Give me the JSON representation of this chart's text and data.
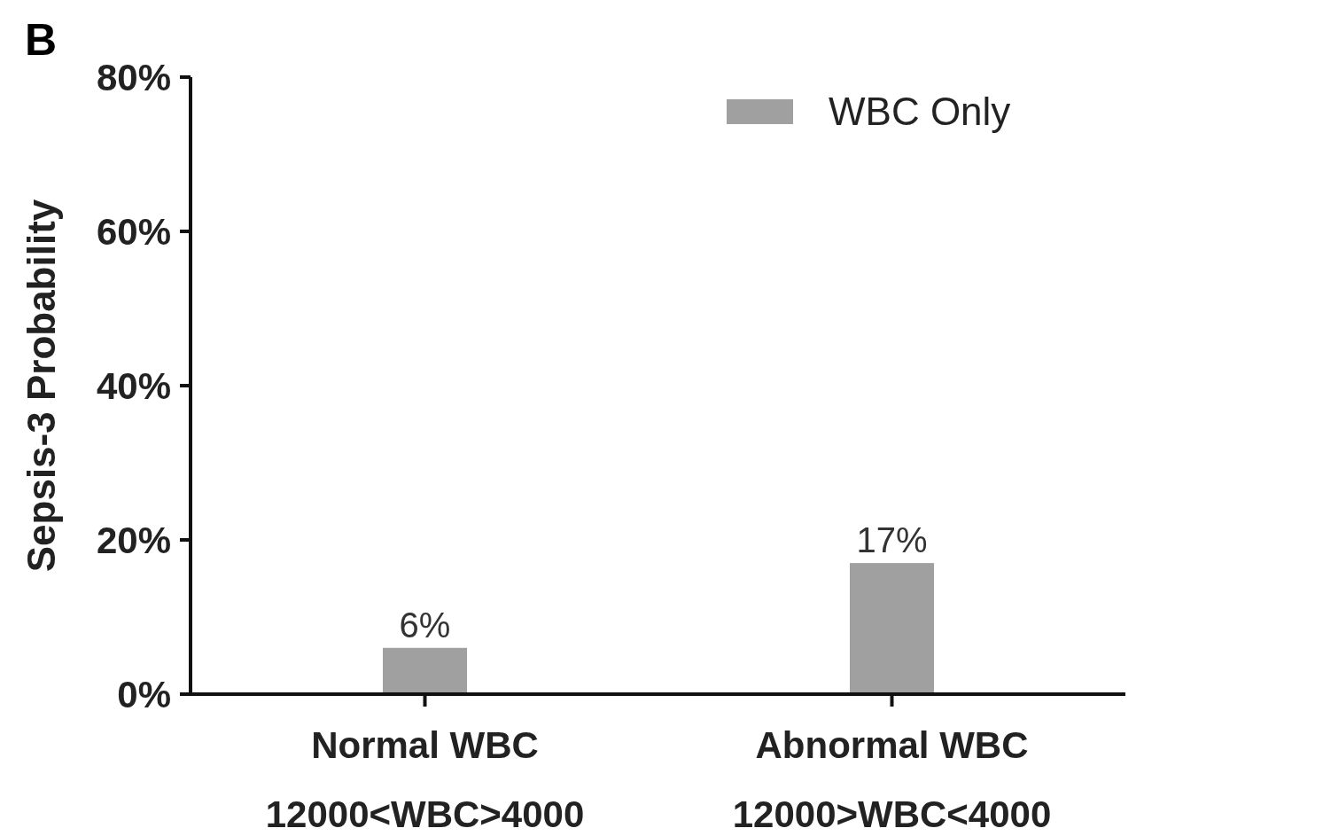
{
  "chart_data": {
    "type": "bar",
    "ylabel": "Sepsis-3 Probability",
    "annotations": [
      "B"
    ],
    "categories": [
      "Normal WBC\n12000<WBC>4000",
      "Abnormal WBC\n12000>WBC<4000"
    ],
    "series": [
      {
        "name": "WBC Only",
        "color": "#a0a0a0",
        "values": [
          6,
          17
        ],
        "value_labels": [
          "6%",
          "17%"
        ]
      }
    ],
    "ylim": [
      0,
      80
    ],
    "yticks": [
      {
        "value": 0,
        "label": "0%"
      },
      {
        "value": 20,
        "label": "20%"
      },
      {
        "value": 40,
        "label": "40%"
      },
      {
        "value": 60,
        "label": "60%"
      },
      {
        "value": 80,
        "label": "80%"
      }
    ],
    "legend": "top right",
    "grid": false
  }
}
